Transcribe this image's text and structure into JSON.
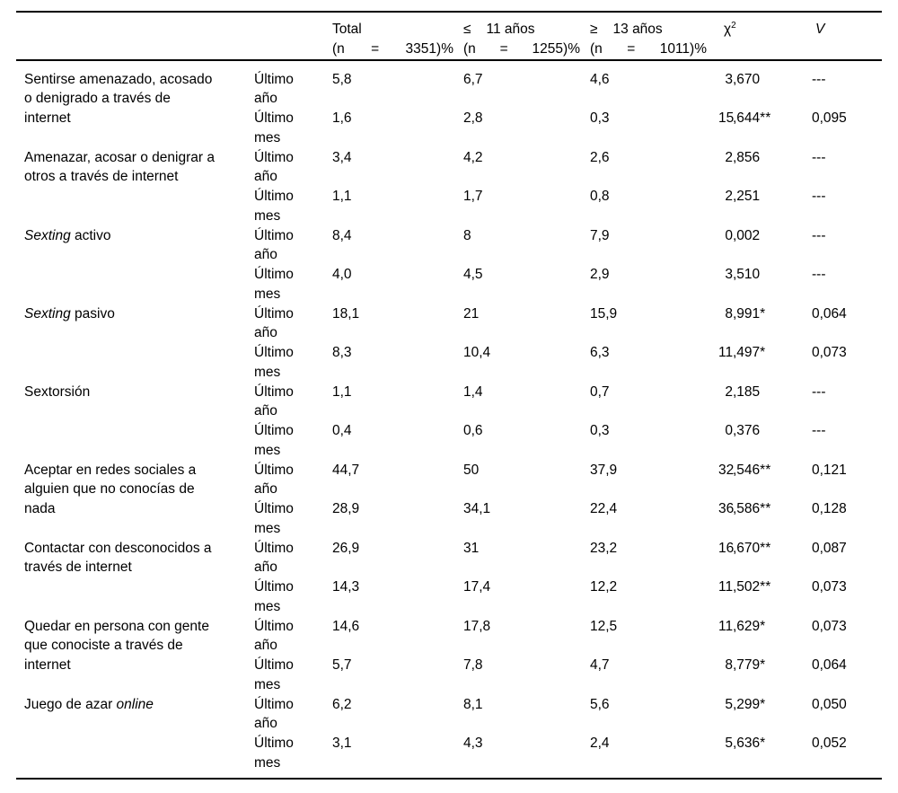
{
  "table": {
    "header": {
      "total": {
        "title": "Total",
        "n_open": "(n",
        "eq": "=",
        "n_close": "3351)%"
      },
      "le11": {
        "symbol": "≤",
        "title": "11 años",
        "n_open": "(n",
        "eq": "=",
        "n_close": "1255)%"
      },
      "ge13": {
        "symbol": "≥",
        "title": "13 años",
        "n_open": "(n",
        "eq": "=",
        "n_close": "1011)%"
      },
      "chi2": {
        "base": "χ",
        "sup": "2"
      },
      "v": "V"
    },
    "rows": [
      {
        "label_lines": [
          [
            {
              "text": "Sentirse amenazado, acosado",
              "italic": false
            }
          ],
          [
            {
              "text": "o denigrado a través de",
              "italic": false
            }
          ],
          [
            {
              "text": "internet",
              "italic": false
            }
          ]
        ],
        "periods": [
          {
            "period": "Último año",
            "total": "5,8",
            "le11": "6,7",
            "ge13": "4,6",
            "chi_int": "3",
            "chi_rest": ",670",
            "v": "---"
          },
          {
            "period": "Último mes",
            "total": "1,6",
            "le11": "2,8",
            "ge13": "0,3",
            "chi_int": "15",
            "chi_rest": ",644**",
            "v": "0,095"
          }
        ]
      },
      {
        "label_lines": [
          [
            {
              "text": "Amenazar, acosar o denigrar a",
              "italic": false
            }
          ],
          [
            {
              "text": "otros a través de internet",
              "italic": false
            }
          ]
        ],
        "periods": [
          {
            "period": "Último año",
            "total": "3,4",
            "le11": "4,2",
            "ge13": "2,6",
            "chi_int": "2",
            "chi_rest": ",856",
            "v": "---"
          },
          {
            "period": "Último mes",
            "total": "1,1",
            "le11": "1,7",
            "ge13": "0,8",
            "chi_int": "2",
            "chi_rest": ",251",
            "v": "---"
          }
        ]
      },
      {
        "label_lines": [
          [
            {
              "text": "Sexting",
              "italic": true
            },
            {
              "text": " activo",
              "italic": false
            }
          ]
        ],
        "periods": [
          {
            "period": "Último año",
            "total": "8,4",
            "le11": "8",
            "ge13": "7,9",
            "chi_int": "0",
            "chi_rest": ",002",
            "v": "---"
          },
          {
            "period": "Último mes",
            "total": "4,0",
            "le11": "4,5",
            "ge13": "2,9",
            "chi_int": "3",
            "chi_rest": ",510",
            "v": "---"
          }
        ]
      },
      {
        "label_lines": [
          [
            {
              "text": "Sexting",
              "italic": true
            },
            {
              "text": " pasivo",
              "italic": false
            }
          ]
        ],
        "periods": [
          {
            "period": "Último año",
            "total": "18,1",
            "le11": "21",
            "ge13": "15,9",
            "chi_int": "8",
            "chi_rest": ",991*",
            "v": "0,064"
          },
          {
            "period": "Último mes",
            "total": "8,3",
            "le11": "10,4",
            "ge13": "6,3",
            "chi_int": "11",
            "chi_rest": ",497*",
            "v": "0,073"
          }
        ]
      },
      {
        "label_lines": [
          [
            {
              "text": "Sextorsión",
              "italic": false
            }
          ]
        ],
        "periods": [
          {
            "period": "Último año",
            "total": "1,1",
            "le11": "1,4",
            "ge13": "0,7",
            "chi_int": "2",
            "chi_rest": ",185",
            "v": "---"
          },
          {
            "period": "Último mes",
            "total": "0,4",
            "le11": "0,6",
            "ge13": "0,3",
            "chi_int": "0",
            "chi_rest": ",376",
            "v": "---"
          }
        ]
      },
      {
        "label_lines": [
          [
            {
              "text": "Aceptar en redes sociales a",
              "italic": false
            }
          ],
          [
            {
              "text": "alguien que no conocías de",
              "italic": false
            }
          ],
          [
            {
              "text": "nada",
              "italic": false
            }
          ]
        ],
        "periods": [
          {
            "period": "Último año",
            "total": "44,7",
            "le11": "50",
            "ge13": "37,9",
            "chi_int": "32",
            "chi_rest": ",546**",
            "v": "0,121"
          },
          {
            "period": "Último mes",
            "total": "28,9",
            "le11": "34,1",
            "ge13": "22,4",
            "chi_int": "36",
            "chi_rest": ",586**",
            "v": "0,128"
          }
        ]
      },
      {
        "label_lines": [
          [
            {
              "text": "Contactar con desconocidos a",
              "italic": false
            }
          ],
          [
            {
              "text": "través de internet",
              "italic": false
            }
          ]
        ],
        "periods": [
          {
            "period": "Último año",
            "total": "26,9",
            "le11": "31",
            "ge13": "23,2",
            "chi_int": "16",
            "chi_rest": ",670**",
            "v": "0,087"
          },
          {
            "period": "Último mes",
            "total": "14,3",
            "le11": "17,4",
            "ge13": "12,2",
            "chi_int": "11",
            "chi_rest": ",502**",
            "v": "0,073"
          }
        ]
      },
      {
        "label_lines": [
          [
            {
              "text": "Quedar en persona con gente",
              "italic": false
            }
          ],
          [
            {
              "text": "que conociste a través de",
              "italic": false
            }
          ],
          [
            {
              "text": "internet",
              "italic": false
            }
          ]
        ],
        "periods": [
          {
            "period": "Último año",
            "total": "14,6",
            "le11": "17,8",
            "ge13": "12,5",
            "chi_int": "11",
            "chi_rest": ",629*",
            "v": "0,073"
          },
          {
            "period": "Último mes",
            "total": "5,7",
            "le11": "7,8",
            "ge13": "4,7",
            "chi_int": "8",
            "chi_rest": ",779*",
            "v": "0,064"
          }
        ]
      },
      {
        "label_lines": [
          [
            {
              "text": "Juego de azar ",
              "italic": false
            },
            {
              "text": "online",
              "italic": true
            }
          ]
        ],
        "periods": [
          {
            "period": "Último año",
            "total": "6,2",
            "le11": "8,1",
            "ge13": "5,6",
            "chi_int": "5",
            "chi_rest": ",299*",
            "v": "0,050"
          },
          {
            "period": "Último mes",
            "total": "3,1",
            "le11": "4,3",
            "ge13": "2,4",
            "chi_int": "5",
            "chi_rest": ",636*",
            "v": "0,052"
          }
        ]
      }
    ]
  }
}
